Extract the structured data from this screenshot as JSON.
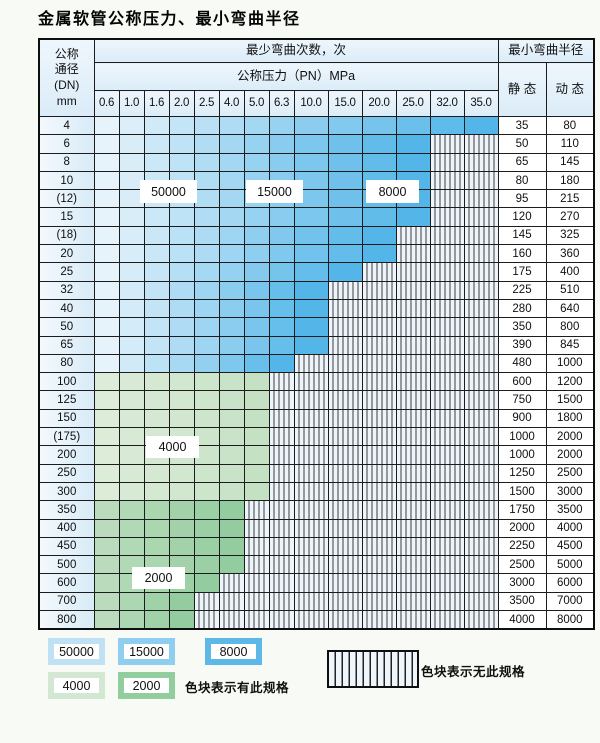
{
  "title": "金属软管公称压力、最小弯曲半径",
  "table": {
    "corner_header": [
      "公称",
      "通径",
      "(DN)",
      "mm"
    ],
    "bend_cycles_header": "最少弯曲次数，次",
    "pressure_header": "公称压力（PN）MPa",
    "radius_header": "最小弯曲半径",
    "static_header": "静 态",
    "dynamic_header": "动 态",
    "pressure_columns": [
      "0.6",
      "1.0",
      "1.6",
      "2.0",
      "2.5",
      "4.0",
      "5.0",
      "6.3",
      "10.0",
      "15.0",
      "20.0",
      "25.0",
      "32.0",
      "35.0"
    ],
    "rows": [
      {
        "dn": "4",
        "colored_through": 14,
        "zone": "blue",
        "static": "35",
        "dynamic": "80"
      },
      {
        "dn": "6",
        "colored_through": 12,
        "zone": "blue",
        "static": "50",
        "dynamic": "110"
      },
      {
        "dn": "8",
        "colored_through": 12,
        "zone": "blue",
        "static": "65",
        "dynamic": "145"
      },
      {
        "dn": "10",
        "colored_through": 12,
        "zone": "blue",
        "static": "80",
        "dynamic": "180"
      },
      {
        "dn": "(12)",
        "colored_through": 12,
        "zone": "blue",
        "static": "95",
        "dynamic": "215"
      },
      {
        "dn": "15",
        "colored_through": 12,
        "zone": "blue",
        "static": "120",
        "dynamic": "270"
      },
      {
        "dn": "(18)",
        "colored_through": 11,
        "zone": "blue",
        "static": "145",
        "dynamic": "325"
      },
      {
        "dn": "20",
        "colored_through": 11,
        "zone": "blue",
        "static": "160",
        "dynamic": "360"
      },
      {
        "dn": "25",
        "colored_through": 10,
        "zone": "blue",
        "static": "175",
        "dynamic": "400"
      },
      {
        "dn": "32",
        "colored_through": 9,
        "zone": "blue",
        "static": "225",
        "dynamic": "510"
      },
      {
        "dn": "40",
        "colored_through": 9,
        "zone": "blue",
        "static": "280",
        "dynamic": "640"
      },
      {
        "dn": "50",
        "colored_through": 9,
        "zone": "blue",
        "static": "350",
        "dynamic": "800"
      },
      {
        "dn": "65",
        "colored_through": 9,
        "zone": "blue",
        "static": "390",
        "dynamic": "845"
      },
      {
        "dn": "80",
        "colored_through": 8,
        "zone": "blue",
        "static": "480",
        "dynamic": "1000"
      },
      {
        "dn": "100",
        "colored_through": 7,
        "zone": "green4000",
        "static": "600",
        "dynamic": "1200"
      },
      {
        "dn": "125",
        "colored_through": 7,
        "zone": "green4000",
        "static": "750",
        "dynamic": "1500"
      },
      {
        "dn": "150",
        "colored_through": 7,
        "zone": "green4000",
        "static": "900",
        "dynamic": "1800"
      },
      {
        "dn": "(175)",
        "colored_through": 7,
        "zone": "green4000",
        "static": "1000",
        "dynamic": "2000"
      },
      {
        "dn": "200",
        "colored_through": 7,
        "zone": "green4000",
        "static": "1000",
        "dynamic": "2000"
      },
      {
        "dn": "250",
        "colored_through": 7,
        "zone": "green4000",
        "static": "1250",
        "dynamic": "2500"
      },
      {
        "dn": "300",
        "colored_through": 7,
        "zone": "green4000",
        "static": "1500",
        "dynamic": "3000"
      },
      {
        "dn": "350",
        "colored_through": 6,
        "zone": "green2000",
        "static": "1750",
        "dynamic": "3500"
      },
      {
        "dn": "400",
        "colored_through": 6,
        "zone": "green2000",
        "static": "2000",
        "dynamic": "4000"
      },
      {
        "dn": "450",
        "colored_through": 6,
        "zone": "green2000",
        "static": "2250",
        "dynamic": "4500"
      },
      {
        "dn": "500",
        "colored_through": 6,
        "zone": "green2000",
        "static": "2500",
        "dynamic": "5000"
      },
      {
        "dn": "600",
        "colored_through": 5,
        "zone": "green2000",
        "static": "3000",
        "dynamic": "6000"
      },
      {
        "dn": "700",
        "colored_through": 4,
        "zone": "green2000",
        "static": "3500",
        "dynamic": "7000"
      },
      {
        "dn": "800",
        "colored_through": 4,
        "zone": "green2000",
        "static": "4000",
        "dynamic": "8000"
      }
    ],
    "overlay_labels": [
      "50000",
      "15000",
      "8000",
      "4000",
      "2000"
    ]
  },
  "legend": {
    "items": [
      {
        "label": "50000"
      },
      {
        "label": "15000"
      },
      {
        "label": "8000"
      },
      {
        "label": "4000"
      },
      {
        "label": "2000"
      }
    ],
    "has_spec_note": "色块表示有此规格",
    "no_spec_note": "色块表示无此规格"
  },
  "colors": {
    "blue_grad_start": "#e6f3fb",
    "blue_grad_end": "#54b6e8",
    "green4000_start": "#dcecd9",
    "green4000_end": "#c5e1c4",
    "green2000_start": "#badcbc",
    "green2000_end": "#93cc9e",
    "legend_50000": "#c0e0f4",
    "legend_15000": "#8fceee",
    "legend_8000": "#5eb8e7",
    "legend_4000": "#d2e8d2",
    "legend_2000": "#92cd9e",
    "hatch_bg": "#edf4fa",
    "page_bg": "#f8faf5"
  }
}
